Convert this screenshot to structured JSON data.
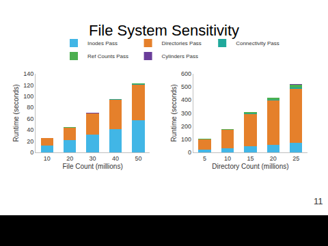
{
  "title": "File System Sensitivity",
  "page_number": "11",
  "chart_data": [
    {
      "type": "bar",
      "stacked": true,
      "grid": false,
      "legend": "top",
      "x_label": "File Count (millions)",
      "y_label": "Runtime (seconds)",
      "categories": [
        "10",
        "20",
        "30",
        "40",
        "50"
      ],
      "ylim": [
        0,
        140
      ],
      "yticks": [
        0,
        20,
        40,
        60,
        80,
        100,
        120,
        140
      ],
      "series": [
        {
          "name": "Inodes Pass",
          "color": "#41b6e6",
          "values": [
            12,
            22,
            32,
            42,
            57
          ]
        },
        {
          "name": "Directories Pass",
          "color": "#e5802b",
          "values": [
            13,
            22,
            37,
            52,
            64
          ]
        },
        {
          "name": "Connectivity Pass",
          "color": "#1fa89b",
          "values": [
            0.3,
            0.4,
            0.5,
            0.6,
            0.7
          ]
        },
        {
          "name": "Ref Counts Pass",
          "color": "#4caf50",
          "values": [
            0.3,
            0.4,
            0.5,
            0.6,
            0.7
          ]
        },
        {
          "name": "Cylinders Pass",
          "color": "#6a3d9a",
          "values": [
            0.1,
            0.1,
            0.2,
            0.2,
            0.3
          ]
        }
      ]
    },
    {
      "type": "bar",
      "stacked": true,
      "grid": false,
      "x_label": "Directory Count (millions)",
      "y_label": "Runtime (seconds)",
      "categories": [
        "5",
        "10",
        "15",
        "20",
        "25"
      ],
      "ylim": [
        0,
        600
      ],
      "yticks": [
        0,
        100,
        200,
        300,
        400,
        500,
        600
      ],
      "series": [
        {
          "name": "Inodes Pass",
          "color": "#41b6e6",
          "values": [
            20,
            30,
            45,
            60,
            75
          ]
        },
        {
          "name": "Directories Pass",
          "color": "#e5802b",
          "values": [
            78,
            140,
            245,
            335,
            410
          ]
        },
        {
          "name": "Connectivity Pass",
          "color": "#1fa89b",
          "values": [
            2,
            3,
            5,
            8,
            10
          ]
        },
        {
          "name": "Ref Counts Pass",
          "color": "#4caf50",
          "values": [
            3,
            5,
            12,
            15,
            22
          ]
        },
        {
          "name": "Cylinders Pass",
          "color": "#6a3d9a",
          "values": [
            0.5,
            1,
            1.5,
            2,
            3
          ]
        }
      ]
    }
  ]
}
